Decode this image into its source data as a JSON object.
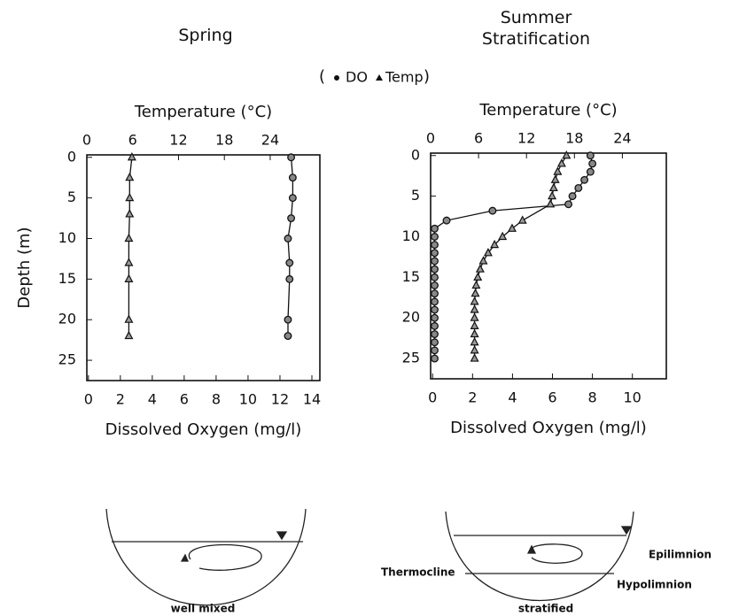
{
  "chart_data": [
    {
      "type": "line",
      "title": "Spring",
      "x_label": "Temperature (°C)",
      "x2_label": "Dissolved Oxygen (mg/l)",
      "y_label": "Depth (m)",
      "xlim": [
        0,
        30.5
      ],
      "xticks": [
        0,
        6,
        12,
        18,
        24
      ],
      "x2lim": [
        -0.1,
        14.5
      ],
      "x2ticks": [
        0,
        2,
        4,
        6,
        8,
        10,
        12,
        14
      ],
      "ylim": [
        -0.3,
        27.5
      ],
      "yticks": [
        0,
        5,
        10,
        15,
        20,
        25
      ],
      "y_inverted": true,
      "series": [
        {
          "name": "DO",
          "axis": "x2",
          "marker": "circle",
          "color": "#111",
          "depth": [
            0,
            2.5,
            5,
            7.5,
            10,
            13,
            15,
            20,
            22
          ],
          "values": [
            12.7,
            12.8,
            12.8,
            12.7,
            12.5,
            12.6,
            12.6,
            12.5,
            12.5
          ]
        },
        {
          "name": "Temp",
          "axis": "x",
          "marker": "triangle",
          "color": "#111",
          "depth": [
            0,
            2.5,
            5,
            7,
            10,
            13,
            15,
            20,
            22
          ],
          "values": [
            5.9,
            5.6,
            5.6,
            5.6,
            5.5,
            5.5,
            5.5,
            5.5,
            5.5
          ]
        }
      ]
    },
    {
      "type": "line",
      "title": "Summer Stratification",
      "x_label": "Temperature (°C)",
      "x2_label": "Dissolved Oxygen (mg/l)",
      "xlim": [
        0,
        29.5
      ],
      "xticks": [
        0,
        6,
        12,
        18,
        24
      ],
      "x2lim": [
        -0.1,
        11.7
      ],
      "x2ticks": [
        0,
        2,
        4,
        6,
        8,
        10
      ],
      "ylim": [
        -0.3,
        27.5
      ],
      "yticks": [
        0,
        5,
        10,
        15,
        20,
        25
      ],
      "y_inverted": true,
      "series": [
        {
          "name": "DO",
          "axis": "x2",
          "marker": "circle",
          "color": "#111",
          "depth": [
            0,
            1,
            2,
            3,
            4,
            5,
            6,
            6.8,
            8,
            9,
            10,
            11,
            12,
            13,
            14,
            15,
            16,
            17,
            18,
            19,
            20,
            21,
            22,
            23,
            24,
            25
          ],
          "values": [
            7.9,
            8.0,
            7.9,
            7.6,
            7.3,
            7.0,
            6.8,
            3.0,
            0.7,
            0.1,
            0.1,
            0.1,
            0.1,
            0.1,
            0.1,
            0.1,
            0.1,
            0.1,
            0.1,
            0.1,
            0.1,
            0.1,
            0.1,
            0.1,
            0.1,
            0.1
          ]
        },
        {
          "name": "Temp",
          "axis": "x",
          "marker": "triangle",
          "color": "#111",
          "depth": [
            0,
            1,
            2,
            3,
            4,
            5,
            6,
            8,
            9,
            10,
            11,
            12,
            13,
            14,
            15,
            16,
            17,
            18,
            19,
            20,
            21,
            22,
            23,
            24,
            25
          ],
          "values": [
            17.0,
            16.4,
            15.9,
            15.6,
            15.4,
            15.2,
            15.0,
            11.5,
            10.2,
            9.0,
            8.0,
            7.2,
            6.6,
            6.2,
            5.9,
            5.7,
            5.6,
            5.5,
            5.5,
            5.5,
            5.5,
            5.5,
            5.5,
            5.5,
            5.5
          ]
        }
      ]
    }
  ],
  "diagrams": [
    {
      "caption": "well mixed"
    },
    {
      "caption": "stratified",
      "thermocline": "Thermocline",
      "epilimnion": "Epilimnion",
      "hypolimnion": "Hypolimnion"
    }
  ]
}
